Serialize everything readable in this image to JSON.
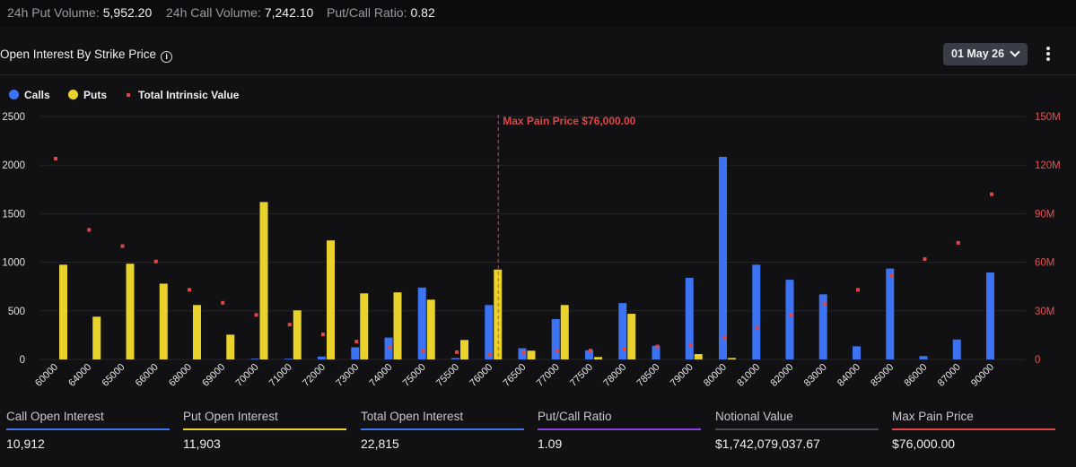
{
  "top_stats": [
    {
      "label": "24h Put Volume:",
      "value": "5,952.20"
    },
    {
      "label": "24h Call Volume:",
      "value": "7,242.10"
    },
    {
      "label": "Put/Call Ratio:",
      "value": "0.82"
    }
  ],
  "header": {
    "title": "Open Interest By Strike Price",
    "info_icon": "info-icon",
    "date_select": "01 May 26",
    "menu_icon": "kebab-menu-icon"
  },
  "legend": {
    "calls": "Calls",
    "puts": "Puts",
    "intrinsic": "Total Intrinsic Value"
  },
  "colors": {
    "calls": "#3b73f2",
    "puts": "#ead22c",
    "intrinsic": "#e04646",
    "max_pain": "#e04646",
    "ratio_line": "#8c3fe0"
  },
  "chart_data": {
    "type": "bar",
    "categories": [
      "60000",
      "64000",
      "65000",
      "66000",
      "68000",
      "69000",
      "70000",
      "71000",
      "72000",
      "73000",
      "74000",
      "75000",
      "75500",
      "76000",
      "76500",
      "77000",
      "77500",
      "78000",
      "78500",
      "79000",
      "80000",
      "81000",
      "82000",
      "83000",
      "84000",
      "85000",
      "86000",
      "87000",
      "90000"
    ],
    "series": [
      {
        "name": "Calls",
        "axis": "left",
        "values": [
          0,
          0,
          0,
          0,
          0,
          0,
          8,
          8,
          30,
          125,
          225,
          740,
          15,
          560,
          115,
          415,
          95,
          580,
          140,
          840,
          2085,
          975,
          820,
          670,
          135,
          935,
          35,
          205,
          895
        ]
      },
      {
        "name": "Puts",
        "axis": "left",
        "values": [
          975,
          440,
          985,
          780,
          560,
          255,
          1620,
          505,
          1225,
          680,
          690,
          615,
          200,
          925,
          90,
          560,
          25,
          470,
          0,
          55,
          15,
          0,
          0,
          0,
          0,
          0,
          0,
          0,
          0
        ]
      },
      {
        "name": "Total Intrinsic Value",
        "axis": "right",
        "type": "scatter",
        "values": [
          124000000,
          80000000,
          70000000,
          60500000,
          43000000,
          35000000,
          27500000,
          21500000,
          15500000,
          11000000,
          7500000,
          5500000,
          4500000,
          3000000,
          4500000,
          5000000,
          5500000,
          6500000,
          8000000,
          9000000,
          13500000,
          20000000,
          27500000,
          34500000,
          43000000,
          52000000,
          62000000,
          72000000,
          102000000
        ]
      }
    ],
    "ylim_left": [
      0,
      2500
    ],
    "yticks_left": [
      "0",
      "500",
      "1000",
      "1500",
      "2000",
      "2500"
    ],
    "ylim_right": [
      0,
      150000000
    ],
    "yticks_right": [
      "0",
      "30M",
      "60M",
      "90M",
      "120M",
      "150M"
    ],
    "max_pain": {
      "strike": "76000",
      "label": "Max Pain Price $76,000.00"
    },
    "grid": true
  },
  "summary": [
    {
      "label": "Call Open Interest",
      "value": "10,912",
      "color": "#3b73f2"
    },
    {
      "label": "Put Open Interest",
      "value": "11,903",
      "color": "#ead22c"
    },
    {
      "label": "Total Open Interest",
      "value": "22,815",
      "color": "#3b73f2"
    },
    {
      "label": "Put/Call Ratio",
      "value": "1.09",
      "color": "#8c3fe0"
    },
    {
      "label": "Notional Value",
      "value": "$1,742,079,037.67",
      "color": "#4a4a52"
    },
    {
      "label": "Max Pain Price",
      "value": "$76,000.00",
      "color": "#e04646"
    }
  ]
}
